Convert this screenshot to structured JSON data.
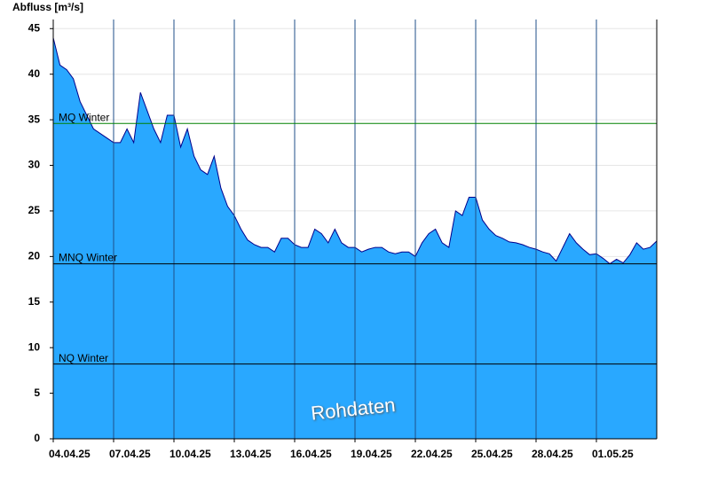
{
  "chart_data": {
    "type": "area",
    "y_label": "Abfluss [m³/s]",
    "watermark": "Rohdaten",
    "categories": [
      "04.04.25",
      null,
      null,
      null,
      null,
      null,
      null,
      null,
      null,
      "07.04.25",
      null,
      null,
      null,
      null,
      null,
      null,
      null,
      null,
      "10.04.25",
      null,
      null,
      null,
      null,
      null,
      null,
      null,
      null,
      "13.04.25",
      null,
      null,
      null,
      null,
      null,
      null,
      null,
      null,
      "16.04.25",
      null,
      null,
      null,
      null,
      null,
      null,
      null,
      null,
      "19.04.25",
      null,
      null,
      null,
      null,
      null,
      null,
      null,
      null,
      "22.04.25",
      null,
      null,
      null,
      null,
      null,
      null,
      null,
      null,
      "25.04.25",
      null,
      null,
      null,
      null,
      null,
      null,
      null,
      null,
      "28.04.25",
      null,
      null,
      null,
      null,
      null,
      null,
      null,
      null,
      "01.05.25",
      null,
      null,
      null,
      null,
      null,
      null,
      null,
      null,
      null
    ],
    "series": [
      {
        "name": "Abfluss",
        "color": "#29a8ff",
        "line_color": "#00008b",
        "values": [
          44,
          41,
          40.5,
          39.5,
          37,
          35.5,
          34,
          33.5,
          33,
          32.5,
          32.5,
          34,
          32.5,
          38,
          36,
          34,
          32.5,
          35.5,
          35.5,
          32,
          34,
          31,
          29.5,
          29,
          31,
          27.5,
          25.5,
          24.5,
          23,
          21.8,
          21.3,
          21,
          21,
          20.5,
          22,
          22,
          21.3,
          21,
          21,
          23,
          22.5,
          21.5,
          23,
          21.5,
          21,
          21,
          20.5,
          20.8,
          21,
          21,
          20.5,
          20.3,
          20.5,
          20.5,
          20,
          21.5,
          22.5,
          23,
          21.5,
          21,
          25,
          24.5,
          26.5,
          26.5,
          24,
          23,
          22.3,
          22,
          21.6,
          21.5,
          21.3,
          21,
          20.8,
          20.5,
          20.3,
          19.5,
          21,
          22.5,
          21.5,
          20.8,
          20.2,
          20.3,
          19.8,
          19.2,
          19.7,
          19.3,
          20.2,
          21.5,
          20.8,
          21,
          21.7
        ]
      }
    ],
    "reference_lines": [
      {
        "label": "MQ Winter",
        "value": 34.6,
        "color": "#008000"
      },
      {
        "label": "MNQ Winter",
        "value": 19.2,
        "color": "#000000"
      },
      {
        "label": "NQ Winter",
        "value": 8.2,
        "color": "#000000"
      }
    ],
    "ylim": [
      0,
      46
    ],
    "yticks": [
      0,
      5,
      10,
      15,
      20,
      25,
      30,
      35,
      40,
      45
    ],
    "grid": true
  }
}
